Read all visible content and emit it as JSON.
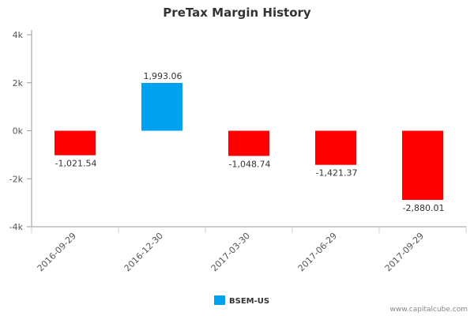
{
  "chart_data": {
    "type": "bar",
    "title": "PreTax Margin History",
    "categories": [
      "2016-09-29",
      "2016-12-30",
      "2017-03-30",
      "2017-06-29",
      "2017-09-29"
    ],
    "series": [
      {
        "name": "BSEM-US",
        "values": [
          -1021.54,
          1993.06,
          -1048.74,
          -1421.37,
          -2880.01
        ]
      }
    ],
    "data_labels": [
      "-1,021.54",
      "1,993.06",
      "-1,048.74",
      "-1,421.37",
      "-2,880.01"
    ],
    "ylim": [
      -4000,
      4000
    ],
    "yticks": [
      4000,
      2000,
      0,
      -2000,
      -4000
    ],
    "ytick_labels": [
      "4k",
      "2k",
      "0k",
      "-2k",
      "-4k"
    ],
    "xlabel": "",
    "ylabel": "",
    "grid": false,
    "legend_position": "bottom-center",
    "colors": {
      "positive": "#00a1ee",
      "negative": "#ff0000",
      "legend": "#00a1ee"
    }
  },
  "credit": "www.capitalcube.com"
}
